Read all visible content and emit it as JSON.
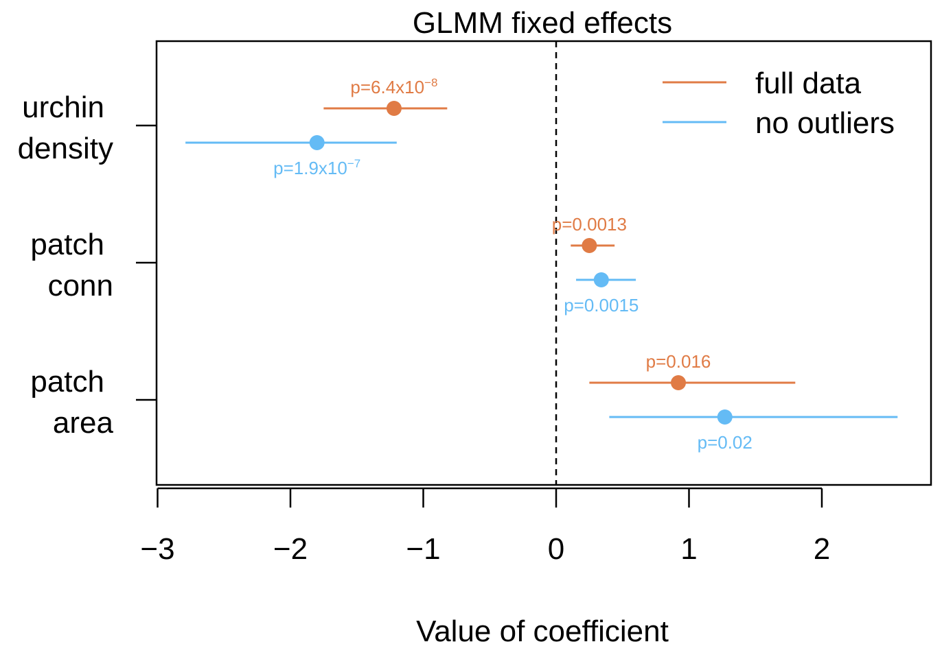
{
  "chart_data": {
    "type": "scatter",
    "title": "GLMM fixed effects",
    "xlabel": "Value of coefficient",
    "ylabel": "",
    "xlim": [
      -3,
      2.7
    ],
    "xticks": [
      -3,
      -2,
      -1,
      0,
      1,
      2
    ],
    "xtick_labels": [
      "−3",
      "−2",
      "−1",
      "0",
      "1",
      "2"
    ],
    "reference_line": {
      "x": 0,
      "style": "dashed"
    },
    "legend_position": "top-right",
    "categories": [
      {
        "lines": [
          "urchin",
          "density"
        ]
      },
      {
        "lines": [
          "patch",
          "conn"
        ]
      },
      {
        "lines": [
          "patch",
          "area"
        ]
      }
    ],
    "series": [
      {
        "name": "full data",
        "color": "#E07B45",
        "points": [
          {
            "estimate": -1.22,
            "lower": -1.75,
            "upper": -0.82,
            "p_base": "p=6.4x10",
            "p_exp": "−8"
          },
          {
            "estimate": 0.25,
            "lower": 0.11,
            "upper": 0.44,
            "p_base": "p=0.0013",
            "p_exp": ""
          },
          {
            "estimate": 0.92,
            "lower": 0.25,
            "upper": 1.8,
            "p_base": "p=0.016",
            "p_exp": ""
          }
        ]
      },
      {
        "name": "no outliers",
        "color": "#64BBF5",
        "points": [
          {
            "estimate": -1.8,
            "lower": -2.79,
            "upper": -1.2,
            "p_base": "p=1.9x10",
            "p_exp": "−7"
          },
          {
            "estimate": 0.34,
            "lower": 0.15,
            "upper": 0.6,
            "p_base": "p=0.0015",
            "p_exp": ""
          },
          {
            "estimate": 1.27,
            "lower": 0.4,
            "upper": 2.57,
            "p_base": "p=0.02",
            "p_exp": ""
          }
        ]
      }
    ]
  }
}
